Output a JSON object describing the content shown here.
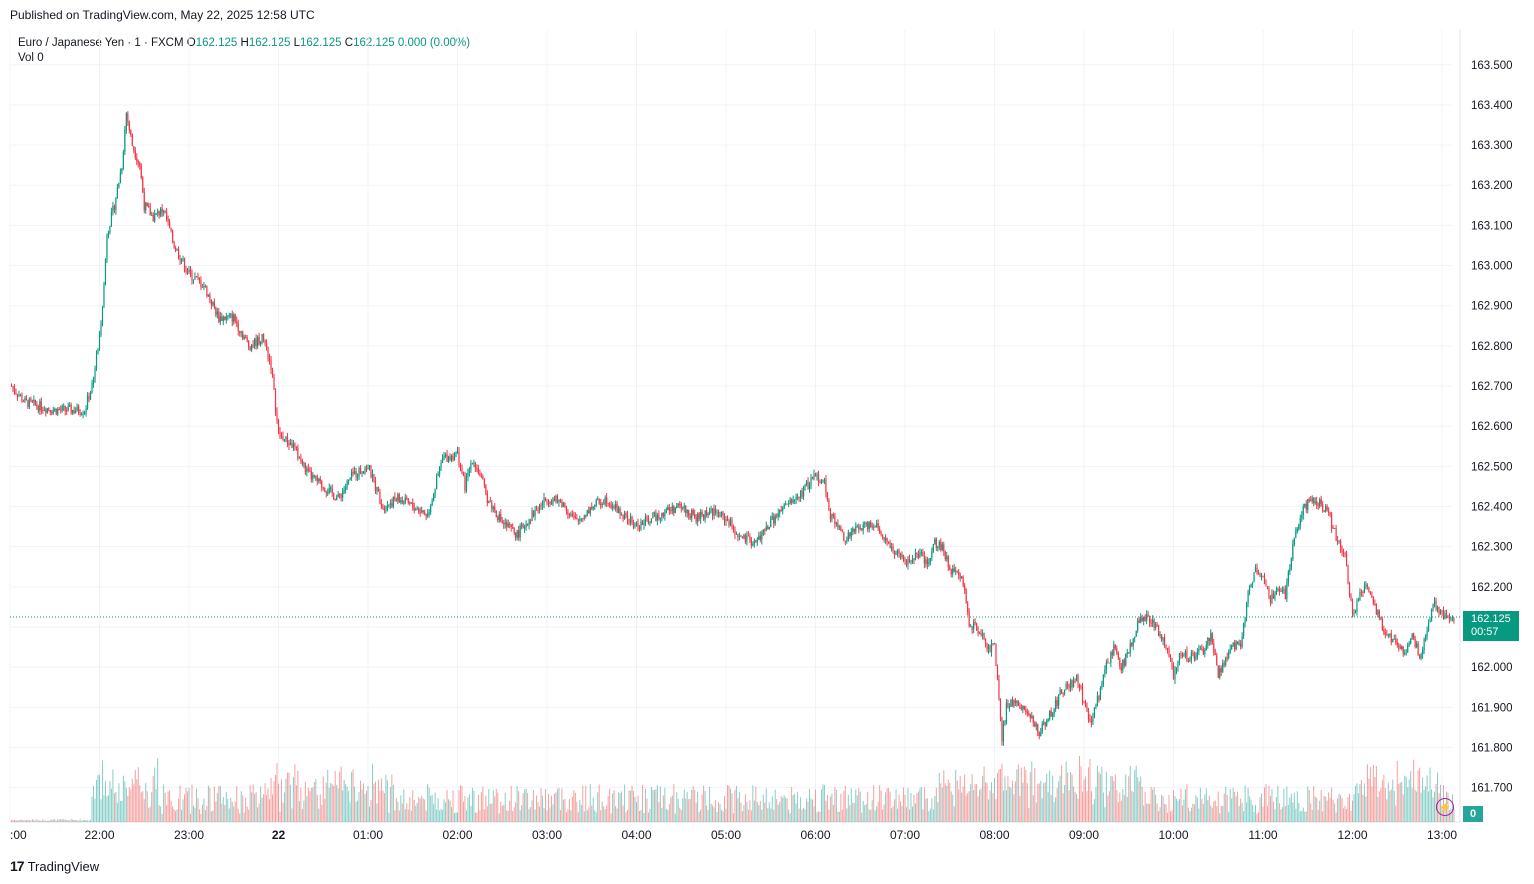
{
  "header": {
    "published": "Published on TradingView.com, May 22, 2025 12:58 UTC"
  },
  "legend": {
    "symbol": "Euro / Japanese Yen · 1 · FXCM",
    "o_label": "O",
    "o_value": "162.125",
    "h_label": "H",
    "h_value": "162.125",
    "l_label": "L",
    "l_value": "162.125",
    "c_label": "C",
    "c_value": "162.125",
    "change": "0.000 (0.00%)",
    "vol_label": "Vol",
    "vol_value": "0"
  },
  "price_tag": {
    "price": "162.125",
    "countdown": "00:57"
  },
  "vol_badge": "0",
  "brand": {
    "logo": "17",
    "name": "TradingView"
  },
  "colors": {
    "up": "#089981",
    "down": "#f23645",
    "vol_up": "#26a69a",
    "vol_down": "#ef5350",
    "grid": "#f0f3fa",
    "last_price_line": "#089981"
  },
  "chart_data": {
    "type": "candlestick",
    "title": "Euro / Japanese Yen · 1 · FXCM",
    "timeframe": "1 minute",
    "ylim": [
      161.63,
      163.6
    ],
    "y_ticks": [
      "161.700",
      "161.800",
      "161.900",
      "162.000",
      "162.100",
      "162.200",
      "162.300",
      "162.400",
      "162.500",
      "162.600",
      "162.700",
      "162.800",
      "162.900",
      "163.000",
      "163.100",
      "163.200",
      "163.300",
      "163.400",
      "163.500"
    ],
    "x_ticks": [
      ":00",
      "22:00",
      "23:00",
      "22",
      "01:00",
      "02:00",
      "03:00",
      "04:00",
      "05:00",
      "06:00",
      "07:00",
      "08:00",
      "09:00",
      "10:00",
      "11:00",
      "12:00",
      "13:00"
    ],
    "x_tick_minutes": [
      -60,
      0,
      60,
      120,
      180,
      240,
      300,
      360,
      420,
      480,
      540,
      600,
      660,
      720,
      780,
      840,
      900
    ],
    "x_range_minutes": [
      -59,
      908
    ],
    "last_price": 162.125,
    "approx_close_path": [
      [
        -59,
        162.7
      ],
      [
        -50,
        162.66
      ],
      [
        -30,
        162.64
      ],
      [
        -10,
        162.64
      ],
      [
        -5,
        162.7
      ],
      [
        0,
        162.82
      ],
      [
        3,
        162.95
      ],
      [
        5,
        163.08
      ],
      [
        10,
        163.15
      ],
      [
        15,
        163.25
      ],
      [
        18,
        163.38
      ],
      [
        22,
        163.3
      ],
      [
        27,
        163.25
      ],
      [
        30,
        163.15
      ],
      [
        36,
        163.12
      ],
      [
        43,
        163.14
      ],
      [
        50,
        163.05
      ],
      [
        60,
        162.98
      ],
      [
        70,
        162.95
      ],
      [
        80,
        162.87
      ],
      [
        90,
        162.87
      ],
      [
        100,
        162.8
      ],
      [
        110,
        162.82
      ],
      [
        115,
        162.75
      ],
      [
        120,
        162.58
      ],
      [
        130,
        162.55
      ],
      [
        140,
        162.48
      ],
      [
        150,
        162.45
      ],
      [
        160,
        162.42
      ],
      [
        170,
        162.48
      ],
      [
        180,
        162.5
      ],
      [
        190,
        162.4
      ],
      [
        200,
        162.42
      ],
      [
        210,
        162.4
      ],
      [
        220,
        162.38
      ],
      [
        230,
        162.52
      ],
      [
        240,
        162.53
      ],
      [
        245,
        162.45
      ],
      [
        250,
        162.52
      ],
      [
        255,
        162.48
      ],
      [
        260,
        162.42
      ],
      [
        270,
        162.36
      ],
      [
        280,
        162.33
      ],
      [
        290,
        162.38
      ],
      [
        300,
        162.42
      ],
      [
        310,
        162.41
      ],
      [
        320,
        162.36
      ],
      [
        330,
        162.4
      ],
      [
        340,
        162.42
      ],
      [
        350,
        162.38
      ],
      [
        360,
        162.35
      ],
      [
        370,
        162.37
      ],
      [
        380,
        162.39
      ],
      [
        390,
        162.4
      ],
      [
        400,
        162.37
      ],
      [
        410,
        162.39
      ],
      [
        420,
        162.37
      ],
      [
        430,
        162.32
      ],
      [
        440,
        162.31
      ],
      [
        450,
        162.36
      ],
      [
        460,
        162.4
      ],
      [
        470,
        162.43
      ],
      [
        480,
        162.48
      ],
      [
        486,
        162.46
      ],
      [
        490,
        162.38
      ],
      [
        500,
        162.32
      ],
      [
        510,
        162.35
      ],
      [
        520,
        162.36
      ],
      [
        530,
        162.3
      ],
      [
        540,
        162.26
      ],
      [
        550,
        162.28
      ],
      [
        555,
        162.25
      ],
      [
        560,
        162.31
      ],
      [
        565,
        162.3
      ],
      [
        570,
        162.24
      ],
      [
        575,
        162.25
      ],
      [
        580,
        162.19
      ],
      [
        583,
        162.11
      ],
      [
        590,
        162.09
      ],
      [
        596,
        162.05
      ],
      [
        600,
        162.05
      ],
      [
        605,
        161.82
      ],
      [
        608,
        161.9
      ],
      [
        615,
        161.92
      ],
      [
        630,
        161.84
      ],
      [
        640,
        161.9
      ],
      [
        645,
        161.94
      ],
      [
        655,
        161.97
      ],
      [
        665,
        161.86
      ],
      [
        675,
        162.0
      ],
      [
        680,
        162.05
      ],
      [
        685,
        162.0
      ],
      [
        690,
        162.04
      ],
      [
        695,
        162.1
      ],
      [
        700,
        162.12
      ],
      [
        705,
        162.12
      ],
      [
        715,
        162.05
      ],
      [
        720,
        161.98
      ],
      [
        725,
        162.04
      ],
      [
        730,
        162.02
      ],
      [
        740,
        162.04
      ],
      [
        745,
        162.08
      ],
      [
        750,
        161.98
      ],
      [
        755,
        162.02
      ],
      [
        760,
        162.05
      ],
      [
        765,
        162.06
      ],
      [
        770,
        162.18
      ],
      [
        775,
        162.25
      ],
      [
        780,
        162.23
      ],
      [
        785,
        162.17
      ],
      [
        790,
        162.2
      ],
      [
        795,
        162.18
      ],
      [
        800,
        162.3
      ],
      [
        805,
        162.38
      ],
      [
        810,
        162.41
      ],
      [
        815,
        162.42
      ],
      [
        820,
        162.4
      ],
      [
        825,
        162.37
      ],
      [
        830,
        162.31
      ],
      [
        835,
        162.28
      ],
      [
        840,
        162.13
      ],
      [
        845,
        162.18
      ],
      [
        850,
        162.2
      ],
      [
        855,
        162.15
      ],
      [
        860,
        162.1
      ],
      [
        865,
        162.08
      ],
      [
        870,
        162.05
      ],
      [
        875,
        162.04
      ],
      [
        880,
        162.08
      ],
      [
        885,
        162.03
      ],
      [
        890,
        162.09
      ],
      [
        894,
        162.16
      ],
      [
        898,
        162.14
      ],
      [
        902,
        162.125
      ],
      [
        908,
        162.125
      ]
    ],
    "volume_note": "volume bars along bottom, heights approx; taller spikes near 22:00, 00:00–01:00, 07:00–08:00"
  }
}
